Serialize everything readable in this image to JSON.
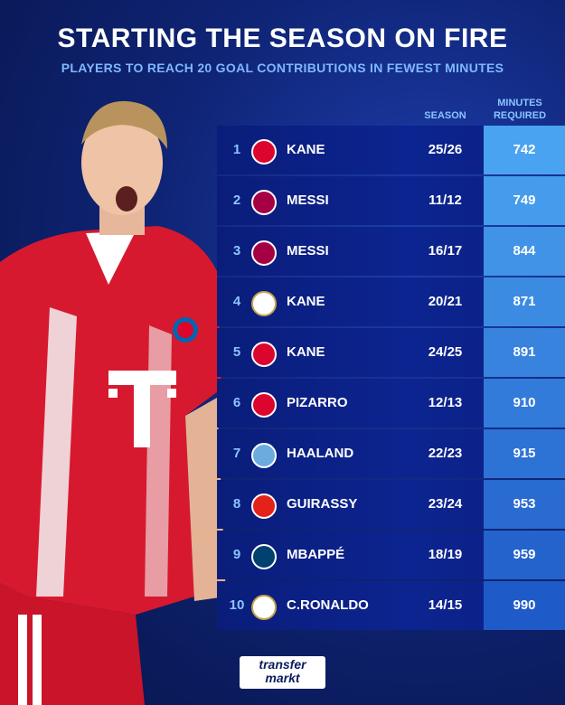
{
  "header": {
    "title": "STARTING THE SEASON ON FIRE",
    "subtitle": "PLAYERS TO REACH 20 GOAL CONTRIBUTIONS IN FEWEST MINUTES"
  },
  "columns": {
    "season": "SEASON",
    "minutes_line1": "MINUTES",
    "minutes_line2": "REQUIRED"
  },
  "rows": [
    {
      "rank": "1",
      "club_icon": "bayern-icon",
      "name": "KANE",
      "season": "25/26",
      "minutes": "742"
    },
    {
      "rank": "2",
      "club_icon": "barcelona-icon",
      "name": "MESSI",
      "season": "11/12",
      "minutes": "749"
    },
    {
      "rank": "3",
      "club_icon": "barcelona-icon",
      "name": "MESSI",
      "season": "16/17",
      "minutes": "844"
    },
    {
      "rank": "4",
      "club_icon": "tottenham-icon",
      "name": "KANE",
      "season": "20/21",
      "minutes": "871"
    },
    {
      "rank": "5",
      "club_icon": "bayern-icon",
      "name": "KANE",
      "season": "24/25",
      "minutes": "891"
    },
    {
      "rank": "6",
      "club_icon": "bayern-icon",
      "name": "PIZARRO",
      "season": "12/13",
      "minutes": "910"
    },
    {
      "rank": "7",
      "club_icon": "man-city-icon",
      "name": "HAALAND",
      "season": "22/23",
      "minutes": "915"
    },
    {
      "rank": "8",
      "club_icon": "stuttgart-icon",
      "name": "GUIRASSY",
      "season": "23/24",
      "minutes": "953"
    },
    {
      "rank": "9",
      "club_icon": "psg-icon",
      "name": "MBAPPÉ",
      "season": "18/19",
      "minutes": "959"
    },
    {
      "rank": "10",
      "club_icon": "real-madrid-icon",
      "name": "C.RONALDO",
      "season": "14/15",
      "minutes": "990"
    }
  ],
  "footer": {
    "brand_line1": "transfer",
    "brand_line2": "markt"
  },
  "colors": {
    "bayern-icon": "#dc052d",
    "barcelona-icon": "#a50044",
    "tottenham-icon": "#ffffff",
    "man-city-icon": "#6cabdd",
    "stuttgart-icon": "#e32219",
    "psg-icon": "#004170",
    "real-madrid-icon": "#ffffff",
    "minutes_start": "#4aa3f0",
    "minutes_end": "#1f5bc8"
  }
}
